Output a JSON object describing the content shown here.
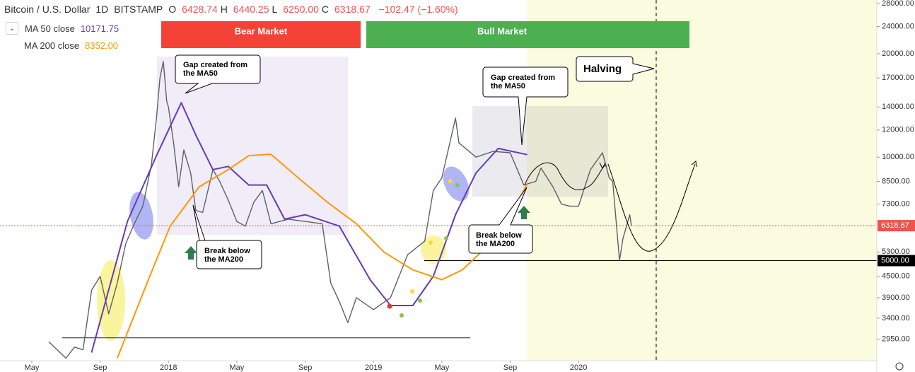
{
  "chart_data": {
    "type": "line",
    "title": "Bitcoin / U.S. Dollar",
    "interval": "1D",
    "exchange": "BITSTAMP",
    "ohlc": [
      {
        "label": "O",
        "value": "6428.74"
      },
      {
        "label": "H",
        "value": "6440.25"
      },
      {
        "label": "L",
        "value": "6250.00"
      },
      {
        "label": "C",
        "value": "6318.67"
      }
    ],
    "change": "−102.47 (−1.60%)",
    "log_scale": true,
    "grid": false,
    "xlim": [
      -1.86,
      49.46
    ],
    "xticks": [
      {
        "value": 0,
        "label": "May"
      },
      {
        "value": 4,
        "label": "Sep"
      },
      {
        "value": 8,
        "label": "2018"
      },
      {
        "value": 12,
        "label": "May"
      },
      {
        "value": 16,
        "label": "Sep"
      },
      {
        "value": 20,
        "label": "2019"
      },
      {
        "value": 24,
        "label": "May"
      },
      {
        "value": 28,
        "label": "Sep"
      },
      {
        "value": 32,
        "label": "2020"
      }
    ],
    "ylim": [
      2557,
      28670
    ],
    "yticks": [
      {
        "value": 28000,
        "label": "28000.00"
      },
      {
        "value": 24000,
        "label": "24000.00"
      },
      {
        "value": 20000,
        "label": "20000.00"
      },
      {
        "value": 17000,
        "label": "17000.00"
      },
      {
        "value": 14000,
        "label": "14000.00"
      },
      {
        "value": 12000,
        "label": "12000.00"
      },
      {
        "value": 10000,
        "label": "10000.00"
      },
      {
        "value": 8500,
        "label": "8500.00"
      },
      {
        "value": 7300,
        "label": "7300.00"
      },
      {
        "value": 5300,
        "label": "5300.00"
      },
      {
        "value": 4500,
        "label": "4500.00"
      },
      {
        "value": 3900,
        "label": "3900.00"
      },
      {
        "value": 3400,
        "label": "3400.00"
      },
      {
        "value": 2950,
        "label": "2950.00"
      }
    ],
    "series": [
      {
        "color": "#5d606b",
        "x": [
          1.0,
          2.0,
          2.5,
          3.0,
          3.5,
          4.0,
          4.5,
          5.0,
          5.5,
          6.0,
          6.5,
          7.0,
          7.3,
          7.5,
          7.7,
          7.9,
          8.0,
          8.3,
          8.6,
          8.9,
          9.3,
          9.6,
          10.0,
          10.6,
          11.0,
          11.5,
          12.0,
          12.5,
          13.0,
          13.5,
          14.0,
          15.0,
          16.0,
          17.0,
          17.5,
          18.0,
          18.5,
          19.0,
          20.0,
          21.0,
          22.0,
          23.0,
          23.5,
          24.0,
          24.8,
          25.0,
          26.0,
          27.0,
          28.0,
          28.8,
          29.5,
          29.8,
          30.5,
          31.0,
          31.5,
          32.0,
          32.7,
          33.4,
          33.8,
          34.0,
          34.4,
          34.6,
          35.0,
          35.1
        ],
        "values": [
          2900,
          2600,
          2800,
          2750,
          4100,
          4500,
          3500,
          4300,
          5600,
          6400,
          7200,
          9500,
          13000,
          17000,
          19000,
          14500,
          14000,
          11000,
          8200,
          10500,
          9000,
          7000,
          6900,
          9200,
          8500,
          7500,
          6500,
          6300,
          7400,
          8000,
          6400,
          6600,
          6500,
          6400,
          4300,
          3800,
          3300,
          3900,
          3600,
          3900,
          5200,
          5700,
          8000,
          8700,
          13000,
          11000,
          10000,
          10400,
          10300,
          8300,
          8500,
          9300,
          8200,
          7300,
          7200,
          7200,
          9200,
          10300,
          8700,
          8500,
          5000,
          5800,
          6800,
          6318.67
        ]
      },
      {
        "name": "MA 50 close",
        "value_label": "10171.75",
        "color": "#673ab7",
        "x": [
          3.5,
          5.6,
          7.3,
          8.75,
          9.6,
          10.6,
          11.5,
          12.7,
          13.75,
          14.8,
          16.0,
          18.0,
          19.8,
          21.0,
          22.3,
          23.5,
          24.8,
          26.0,
          27.3,
          29.0
        ],
        "values": [
          2700,
          6500,
          10100,
          14400,
          11600,
          9200,
          9400,
          8300,
          8300,
          6600,
          6800,
          6300,
          4400,
          3700,
          3700,
          4500,
          6800,
          9000,
          10600,
          10171.75
        ]
      },
      {
        "name": "MA 200 close",
        "value_label": "8352.00",
        "color": "#ff9800",
        "x": [
          5.0,
          6.9,
          8.1,
          9.8,
          11.5,
          12.7,
          14.0,
          15.6,
          17.3,
          19.0,
          20.6,
          22.3,
          24.0,
          25.2,
          27.3,
          29.0
        ],
        "values": [
          2600,
          4500,
          6300,
          8200,
          9200,
          10100,
          10200,
          8700,
          7400,
          6400,
          5300,
          4700,
          4400,
          4700,
          5900,
          8352
        ]
      }
    ],
    "last_price": {
      "value": 6318.67,
      "label": "6318.67",
      "color": "#ef5350"
    },
    "horizontal_line": {
      "value": 5000,
      "label": "5000.00"
    },
    "support_line": {
      "value": 2980,
      "x": [
        1.78,
        25.66
      ]
    },
    "annotations": {
      "bear": "Bear Market",
      "bull": "Bull Market",
      "gap1": [
        "Gap created from",
        "the MA50"
      ],
      "gap2": [
        "Gap created from",
        "the MA50"
      ],
      "break1": [
        "Break below",
        "the MA200"
      ],
      "break2": [
        "Break below",
        "the MA200"
      ],
      "halving": "Halving"
    }
  }
}
